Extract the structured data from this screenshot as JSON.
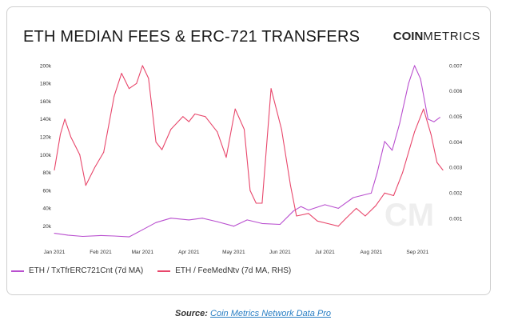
{
  "header": {
    "title": "ETH MEDIAN FEES & ERC-721 TRANSFERS",
    "brand_bold": "COIN",
    "brand_light": "METRICS"
  },
  "watermark": "CM",
  "source": {
    "label": "Source:",
    "link": "Coin Metrics Network Data Pro"
  },
  "colors": {
    "transfers": "#b94fcf",
    "fees": "#e8476b",
    "axis_text": "#333333",
    "grid": "#e6e6e6"
  },
  "chart_data": {
    "type": "line",
    "x_ticks": [
      "Jan 2021",
      "Feb 2021",
      "Mar 2021",
      "Apr 2021",
      "May 2021",
      "Jun 2021",
      "Jul 2021",
      "Aug 2021",
      "Sep 2021"
    ],
    "y_left": {
      "ticks": [
        "20k",
        "40k",
        "60k",
        "80k",
        "100k",
        "120k",
        "140k",
        "160k",
        "180k",
        "200k"
      ],
      "range": [
        0,
        200000
      ]
    },
    "y_right": {
      "ticks": [
        "0.001",
        "0.002",
        "0.003",
        "0.004",
        "0.005",
        "0.006",
        "0.007"
      ],
      "range": [
        0,
        0.007
      ]
    },
    "x_range": [
      "2021-01-01",
      "2021-09-19"
    ],
    "grid": false,
    "legend_position": "bottom-left",
    "series": [
      {
        "name": "ETH / TxTfrERC721Cnt (7d MA)",
        "axis": "left",
        "points": [
          [
            "2021-01-01",
            12000
          ],
          [
            "2021-01-10",
            10000
          ],
          [
            "2021-01-20",
            8500
          ],
          [
            "2021-02-01",
            9500
          ],
          [
            "2021-02-10",
            9000
          ],
          [
            "2021-02-20",
            8000
          ],
          [
            "2021-03-01",
            16000
          ],
          [
            "2021-03-10",
            24000
          ],
          [
            "2021-03-20",
            29000
          ],
          [
            "2021-04-01",
            27000
          ],
          [
            "2021-04-10",
            29000
          ],
          [
            "2021-04-20",
            25000
          ],
          [
            "2021-05-01",
            20000
          ],
          [
            "2021-05-10",
            27000
          ],
          [
            "2021-05-20",
            23000
          ],
          [
            "2021-06-01",
            22000
          ],
          [
            "2021-06-10",
            37000
          ],
          [
            "2021-06-15",
            42000
          ],
          [
            "2021-06-20",
            38000
          ],
          [
            "2021-07-01",
            44000
          ],
          [
            "2021-07-10",
            40000
          ],
          [
            "2021-07-20",
            52000
          ],
          [
            "2021-08-01",
            57000
          ],
          [
            "2021-08-05",
            80000
          ],
          [
            "2021-08-10",
            115000
          ],
          [
            "2021-08-15",
            105000
          ],
          [
            "2021-08-20",
            135000
          ],
          [
            "2021-08-26",
            180000
          ],
          [
            "2021-08-30",
            200000
          ],
          [
            "2021-09-03",
            185000
          ],
          [
            "2021-09-08",
            140000
          ],
          [
            "2021-09-12",
            137000
          ],
          [
            "2021-09-16",
            142000
          ]
        ]
      },
      {
        "name": "ETH / FeeMedNtv (7d MA, RHS)",
        "axis": "right",
        "points": [
          [
            "2021-01-01",
            0.0029
          ],
          [
            "2021-01-05",
            0.0043
          ],
          [
            "2021-01-08",
            0.0049
          ],
          [
            "2021-01-12",
            0.0042
          ],
          [
            "2021-01-18",
            0.0035
          ],
          [
            "2021-01-22",
            0.0023
          ],
          [
            "2021-01-28",
            0.003
          ],
          [
            "2021-02-03",
            0.0036
          ],
          [
            "2021-02-10",
            0.0058
          ],
          [
            "2021-02-15",
            0.0067
          ],
          [
            "2021-02-20",
            0.0061
          ],
          [
            "2021-02-25",
            0.0063
          ],
          [
            "2021-03-01",
            0.007
          ],
          [
            "2021-03-05",
            0.0065
          ],
          [
            "2021-03-10",
            0.004
          ],
          [
            "2021-03-14",
            0.0037
          ],
          [
            "2021-03-20",
            0.0045
          ],
          [
            "2021-03-28",
            0.005
          ],
          [
            "2021-04-01",
            0.0048
          ],
          [
            "2021-04-05",
            0.0051
          ],
          [
            "2021-04-12",
            0.005
          ],
          [
            "2021-04-20",
            0.0044
          ],
          [
            "2021-04-26",
            0.0034
          ],
          [
            "2021-05-02",
            0.0053
          ],
          [
            "2021-05-08",
            0.0045
          ],
          [
            "2021-05-12",
            0.0021
          ],
          [
            "2021-05-16",
            0.0016
          ],
          [
            "2021-05-20",
            0.0016
          ],
          [
            "2021-05-26",
            0.0061
          ],
          [
            "2021-06-02",
            0.0045
          ],
          [
            "2021-06-08",
            0.0023
          ],
          [
            "2021-06-12",
            0.0011
          ],
          [
            "2021-06-20",
            0.0012
          ],
          [
            "2021-06-26",
            0.0009
          ],
          [
            "2021-07-03",
            0.0008
          ],
          [
            "2021-07-10",
            0.0007
          ],
          [
            "2021-07-15",
            0.001
          ],
          [
            "2021-07-22",
            0.0014
          ],
          [
            "2021-07-28",
            0.0011
          ],
          [
            "2021-08-04",
            0.0015
          ],
          [
            "2021-08-10",
            0.002
          ],
          [
            "2021-08-16",
            0.0019
          ],
          [
            "2021-08-22",
            0.0028
          ],
          [
            "2021-08-30",
            0.0044
          ],
          [
            "2021-09-05",
            0.0053
          ],
          [
            "2021-09-10",
            0.0043
          ],
          [
            "2021-09-14",
            0.0032
          ],
          [
            "2021-09-18",
            0.0029
          ]
        ]
      }
    ]
  }
}
